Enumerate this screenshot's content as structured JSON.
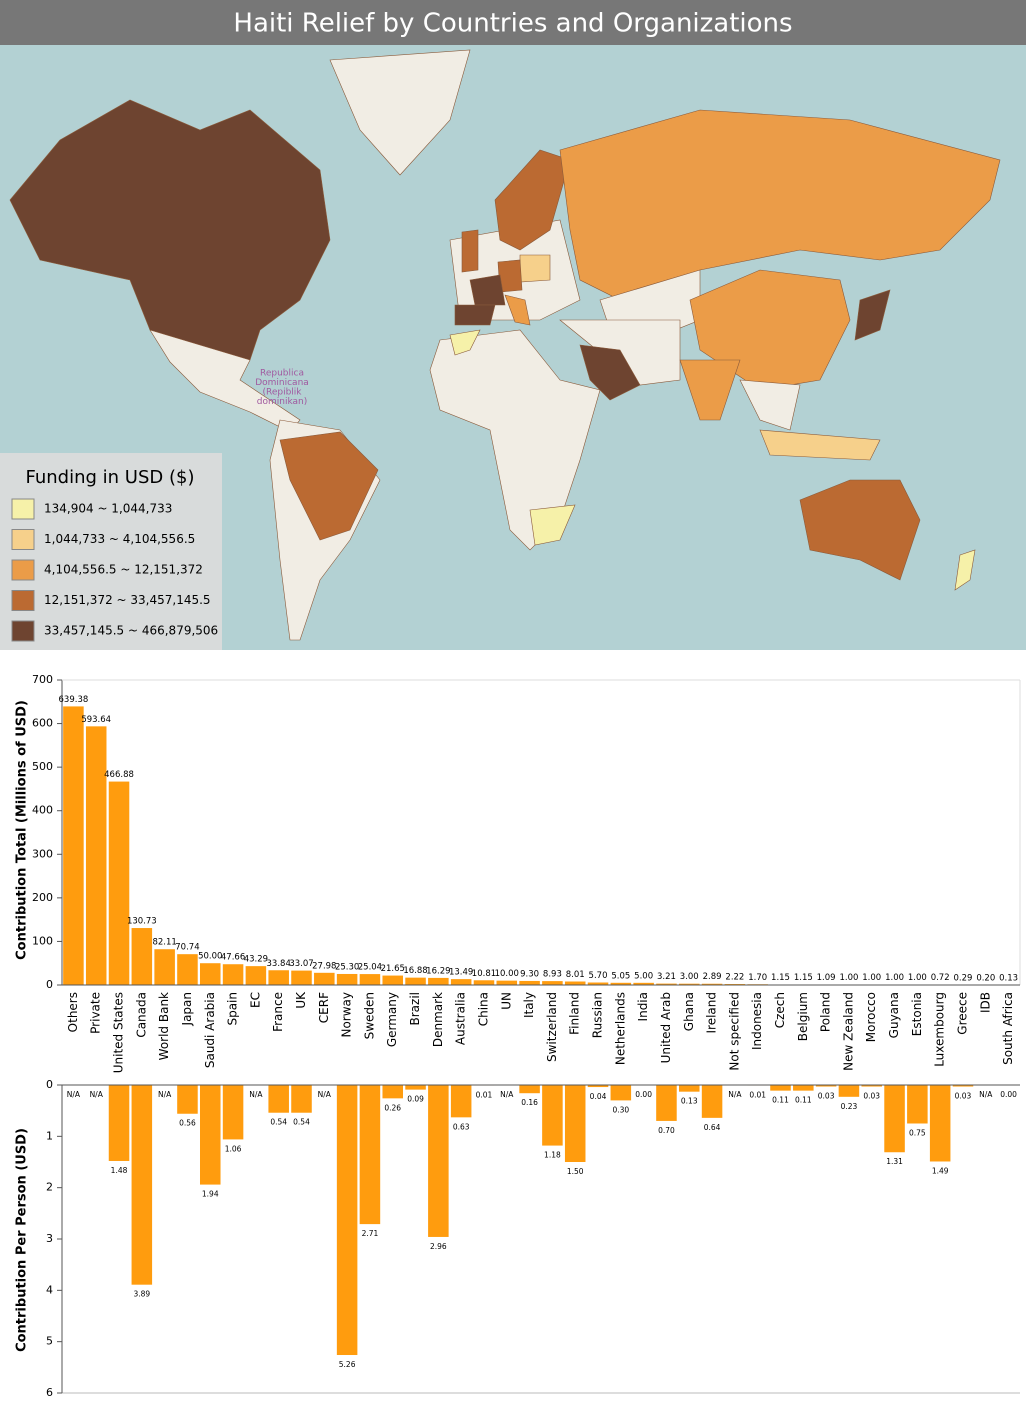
{
  "title": "Haiti Relief by Countries and Organizations",
  "map": {
    "legend_title": "Funding in USD ($)",
    "legend": [
      {
        "label": "134,904 ~ 1,044,733",
        "color": "#f6f1a9"
      },
      {
        "label": "1,044,733 ~ 4,104,556.5",
        "color": "#f6d08b"
      },
      {
        "label": "4,104,556.5 ~ 12,151,372",
        "color": "#eb9c48"
      },
      {
        "label": "12,151,372 ~ 33,457,145.5",
        "color": "#bb6a32"
      },
      {
        "label": "33,457,145.5 ~ 466,879,506",
        "color": "#6e4430"
      }
    ],
    "label": [
      "Republica",
      "Dominicana",
      "(Repiblik",
      "dominikan)"
    ]
  },
  "chart_data": [
    {
      "type": "bar",
      "ylabel": "Contribution Total (Millions of USD)",
      "color": "#ff9c0e",
      "categories": [
        "Others",
        "Private",
        "United States",
        "Canada",
        "World Bank",
        "Japan",
        "Saudi Arabia",
        "Spain",
        "EC",
        "France",
        "UK",
        "CERF",
        "Norway",
        "Sweden",
        "Germany",
        "Brazil",
        "Denmark",
        "Australia",
        "China",
        "UN",
        "Italy",
        "Switzerland",
        "Finland",
        "Russian",
        "Netherlands",
        "India",
        "United Arab",
        "Ghana",
        "Ireland",
        "Not specified",
        "Indonesia",
        "Czech",
        "Belgium",
        "Poland",
        "New Zealand",
        "Morocco",
        "Guyana",
        "Estonia",
        "Luxembourg",
        "Greece",
        "IDB",
        "South Africa"
      ],
      "values": [
        639.38,
        593.64,
        466.88,
        130.73,
        82.11,
        70.74,
        50.0,
        47.66,
        43.29,
        33.84,
        33.07,
        27.98,
        25.3,
        25.04,
        21.65,
        16.88,
        16.29,
        13.49,
        10.81,
        10.0,
        9.3,
        8.93,
        8.01,
        5.7,
        5.05,
        5.0,
        3.21,
        3.0,
        2.89,
        2.22,
        1.7,
        1.15,
        1.15,
        1.09,
        1.0,
        1.0,
        1.0,
        1.0,
        0.72,
        0.29,
        0.2,
        0.13
      ],
      "value_labels": [
        "639.38",
        "593.64",
        "466.88",
        "130.73",
        "82.11",
        "70.74",
        "50.00",
        "47.66",
        "43.29",
        "33.84",
        "33.07",
        "27.98",
        "25.30",
        "25.04",
        "21.65",
        "16.88",
        "16.29",
        "13.49",
        "10.81",
        "10.00",
        "9.30",
        "8.93",
        "8.01",
        "5.70",
        "5.05",
        "5.00",
        "3.21",
        "3.00",
        "2.89",
        "2.22",
        "1.70",
        "1.15",
        "1.15",
        "1.09",
        "1.00",
        "1.00",
        "1.00",
        "1.00",
        "0.72",
        "0.29",
        "0.20",
        "0.13"
      ],
      "ylim": [
        0,
        700
      ],
      "yticks": [
        0,
        100,
        200,
        300,
        400,
        500,
        600,
        700
      ]
    },
    {
      "type": "bar",
      "ylabel": "Contribution Per Person (USD)",
      "color": "#ff9c0e",
      "inverted": true,
      "values": [
        null,
        null,
        1.48,
        3.89,
        null,
        0.56,
        1.94,
        1.06,
        null,
        0.54,
        0.54,
        null,
        5.26,
        2.71,
        0.26,
        0.09,
        2.96,
        0.63,
        0.01,
        null,
        0.16,
        1.18,
        1.5,
        0.04,
        0.3,
        0.0,
        0.7,
        0.13,
        0.64,
        null,
        0.01,
        0.11,
        0.11,
        0.03,
        0.23,
        0.03,
        1.31,
        0.75,
        1.49,
        0.03,
        null,
        0.0
      ],
      "value_labels": [
        "N/A",
        "N/A",
        "1.48",
        "3.89",
        "N/A",
        "0.56",
        "1.94",
        "1.06",
        "N/A",
        "0.54",
        "0.54",
        "N/A",
        "5.26",
        "2.71",
        "0.26",
        "0.09",
        "2.96",
        "0.63",
        "0.01",
        "N/A",
        "0.16",
        "1.18",
        "1.50",
        "0.04",
        "0.30",
        "0.00",
        "0.70",
        "0.13",
        "0.64",
        "N/A",
        "0.01",
        "0.11",
        "0.11",
        "0.03",
        "0.23",
        "0.03",
        "1.31",
        "0.75",
        "1.49",
        "0.03",
        "N/A",
        "0.00"
      ],
      "ylim": [
        0,
        6
      ],
      "yticks": [
        0,
        1,
        2,
        3,
        4,
        5,
        6
      ]
    }
  ]
}
